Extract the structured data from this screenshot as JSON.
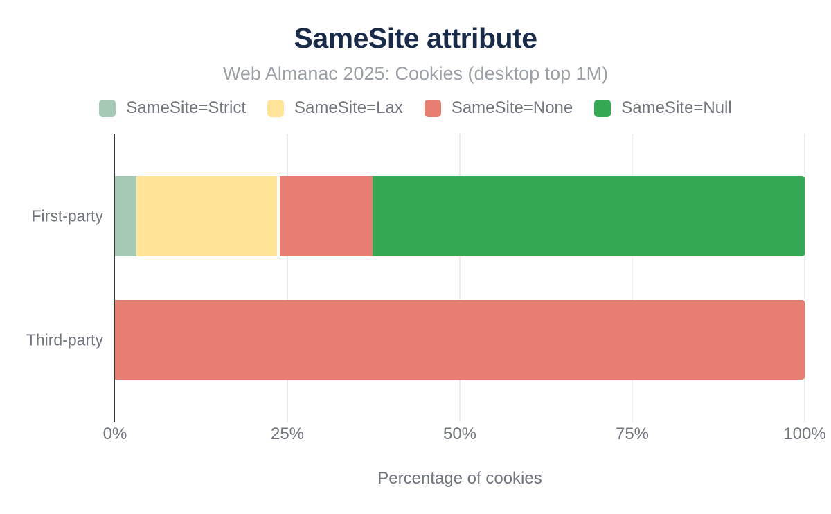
{
  "title": "SameSite attribute",
  "subtitle": "Web Almanac 2025: Cookies (desktop top 1M)",
  "chart_data": {
    "type": "bar",
    "orientation": "horizontal",
    "stacked": true,
    "categories": [
      "First-party",
      "Third-party"
    ],
    "series": [
      {
        "name": "SameSite=Strict",
        "color": "#a6c9b5",
        "values": [
          3.1,
          0
        ]
      },
      {
        "name": "SameSite=Lax",
        "color": "#ffe49a",
        "values": [
          20.4,
          0
        ]
      },
      {
        "name": "SameSite=None",
        "color": "#e87d72",
        "values": [
          13.9,
          100
        ]
      },
      {
        "name": "SameSite=Null",
        "color": "#34a853",
        "values": [
          62.6,
          0
        ]
      }
    ],
    "xlabel": "Percentage of cookies",
    "xlim": [
      0,
      100
    ],
    "x_ticks": [
      "0%",
      "25%",
      "50%",
      "75%",
      "100%"
    ],
    "grid": "vertical-only",
    "legend_position": "top",
    "separators": [
      {
        "category": "First-party",
        "after_series": "SameSite=Lax",
        "width_pct": 0.4
      }
    ]
  },
  "colors": {
    "title": "#1a2b49",
    "subtitle": "#9aa0a6",
    "labels": "#71757e",
    "gridline": "#ededed",
    "axis_line": "#37383a",
    "background": "#ffffff"
  }
}
